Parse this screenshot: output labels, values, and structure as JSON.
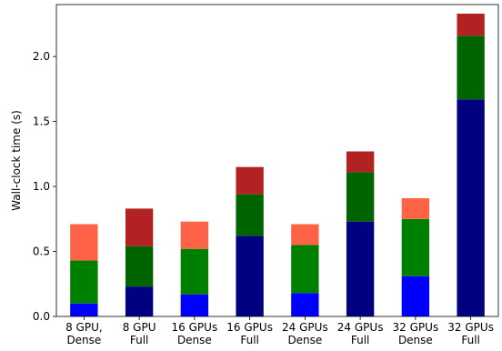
{
  "chart_data": {
    "type": "bar",
    "stacked": true,
    "title": "",
    "xlabel": "",
    "ylabel": "Wall-clock time (s)",
    "ylim": [
      0,
      2.4
    ],
    "yticks": [
      0.0,
      0.5,
      1.0,
      1.5,
      2.0
    ],
    "ytick_labels": [
      "0.0",
      "0.5",
      "1.0",
      "1.5",
      "2.0"
    ],
    "grid": false,
    "legend": null,
    "categories": [
      [
        "8 GPU,",
        "Dense"
      ],
      [
        "8 GPU",
        "Full"
      ],
      [
        "16 GPUs",
        "Dense"
      ],
      [
        "16 GPUs",
        "Full"
      ],
      [
        "24 GPUs",
        "Dense"
      ],
      [
        "24 GPUs",
        "Full"
      ],
      [
        "32 GPUs",
        "Dense"
      ],
      [
        "32 GPUs",
        "Full"
      ]
    ],
    "series": [
      {
        "values": [
          0.1,
          0.23,
          0.17,
          0.62,
          0.18,
          0.73,
          0.31,
          1.67
        ],
        "colors": [
          "#0000ff",
          "#000080",
          "#0000ff",
          "#000080",
          "#0000ff",
          "#000080",
          "#0000ff",
          "#000080"
        ]
      },
      {
        "values": [
          0.33,
          0.31,
          0.35,
          0.32,
          0.37,
          0.38,
          0.44,
          0.49
        ],
        "colors": [
          "#008000",
          "#006400",
          "#008000",
          "#006400",
          "#008000",
          "#006400",
          "#008000",
          "#006400"
        ]
      },
      {
        "values": [
          0.28,
          0.29,
          0.21,
          0.21,
          0.16,
          0.16,
          0.16,
          0.17
        ],
        "colors": [
          "#ff6347",
          "#b22222",
          "#ff6347",
          "#b22222",
          "#ff6347",
          "#b22222",
          "#ff6347",
          "#b22222"
        ]
      }
    ]
  }
}
